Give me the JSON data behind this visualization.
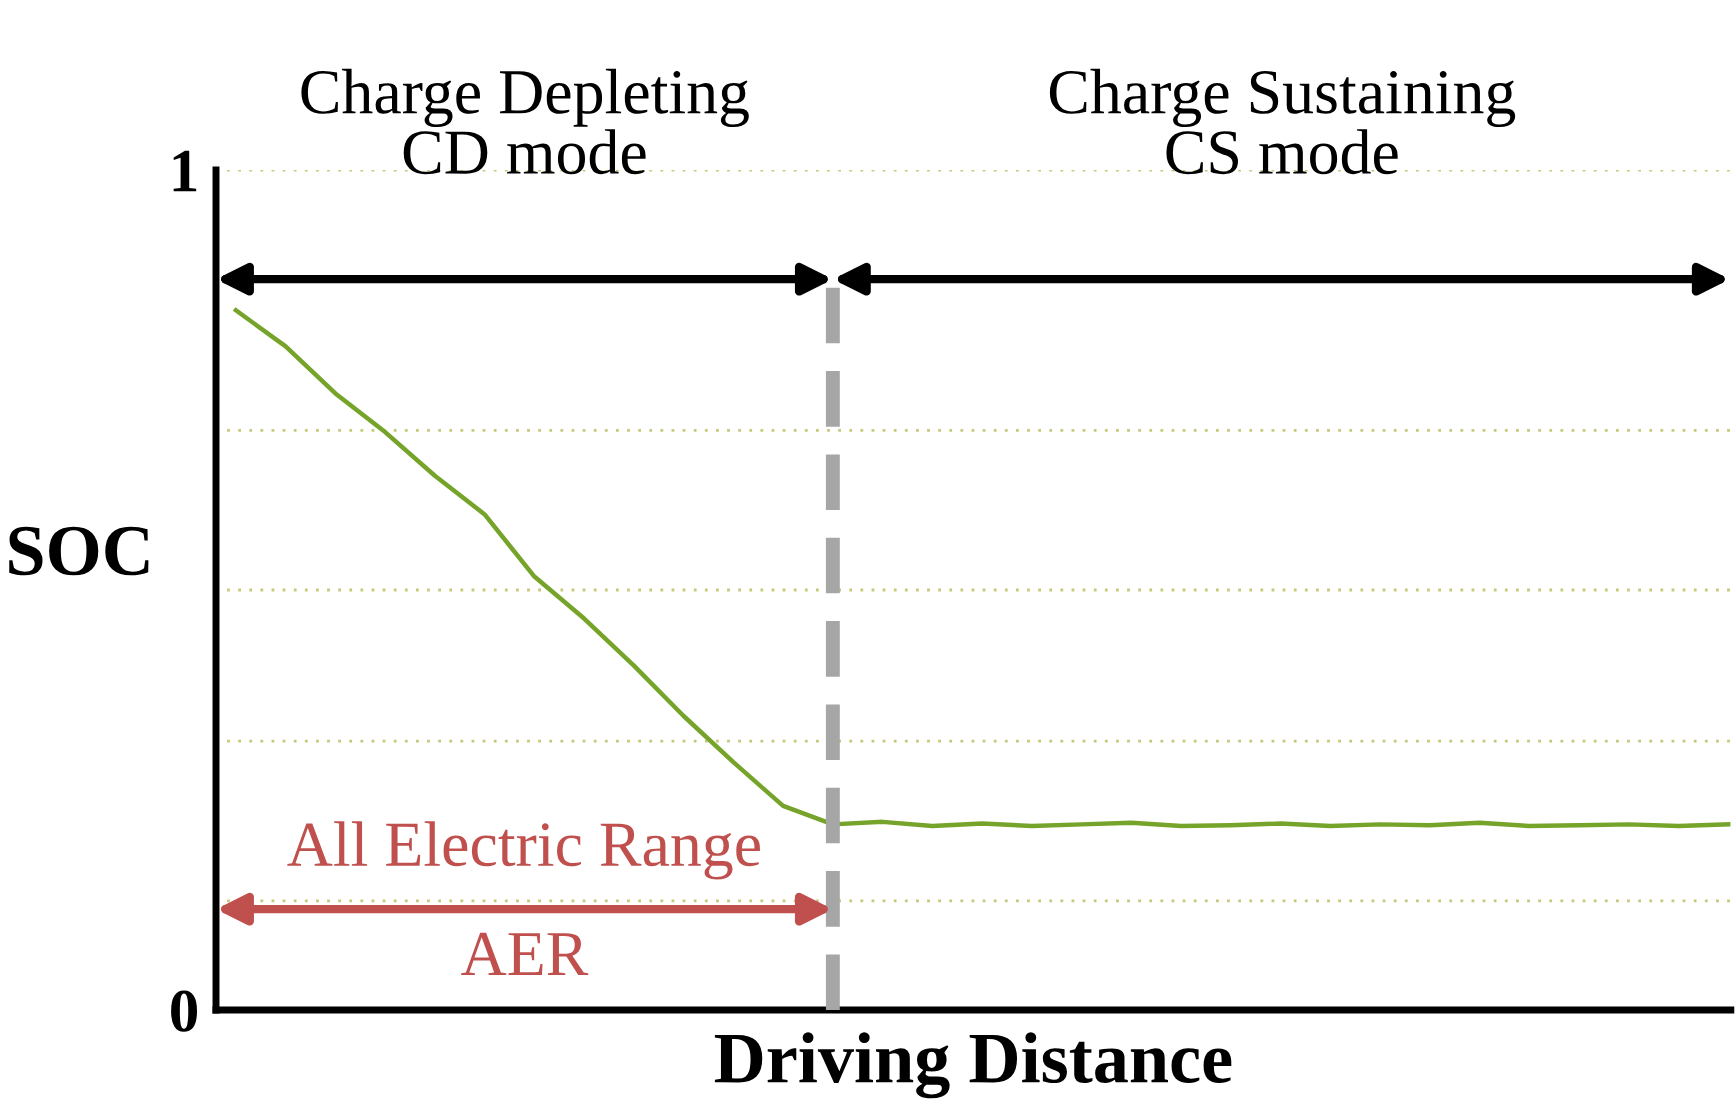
{
  "chart_data": {
    "type": "line",
    "xlabel": "Driving Distance",
    "ylabel": "SOC",
    "categories": [
      null,
      null,
      null,
      null,
      null,
      null,
      null,
      null,
      null,
      null,
      null,
      null,
      null,
      null,
      null,
      null,
      null,
      null,
      null,
      null,
      null,
      null,
      null,
      null,
      null,
      null,
      null,
      null,
      null,
      null,
      null
    ],
    "series": [
      {
        "color": "#76a32a",
        "values": [
          0.833,
          0.79,
          0.734,
          0.688,
          0.636,
          0.59,
          0.516,
          0.466,
          0.41,
          0.35,
          0.295,
          0.243,
          0.221,
          0.224,
          0.219,
          0.222,
          0.219,
          0.221,
          0.223,
          0.219,
          0.22,
          0.222,
          0.219,
          0.221,
          0.22,
          0.223,
          0.219,
          0.22,
          0.221,
          0.219,
          0.221
        ]
      }
    ],
    "ylim": [
      0,
      1
    ],
    "yticks": [
      0,
      {
        "value": 0.13,
        "label": null
      },
      {
        "value": 0.32,
        "label": null
      },
      {
        "value": 0.5,
        "label": null
      },
      {
        "value": 0.69,
        "label": null
      },
      1
    ],
    "grid": "y",
    "legend": false,
    "marker": "none",
    "line_style": "solid",
    "annotations": [
      "Charge Depleting\nCD mode",
      "Charge Sustaining\nCS mode",
      "All Electric Range",
      "AER"
    ]
  }
}
